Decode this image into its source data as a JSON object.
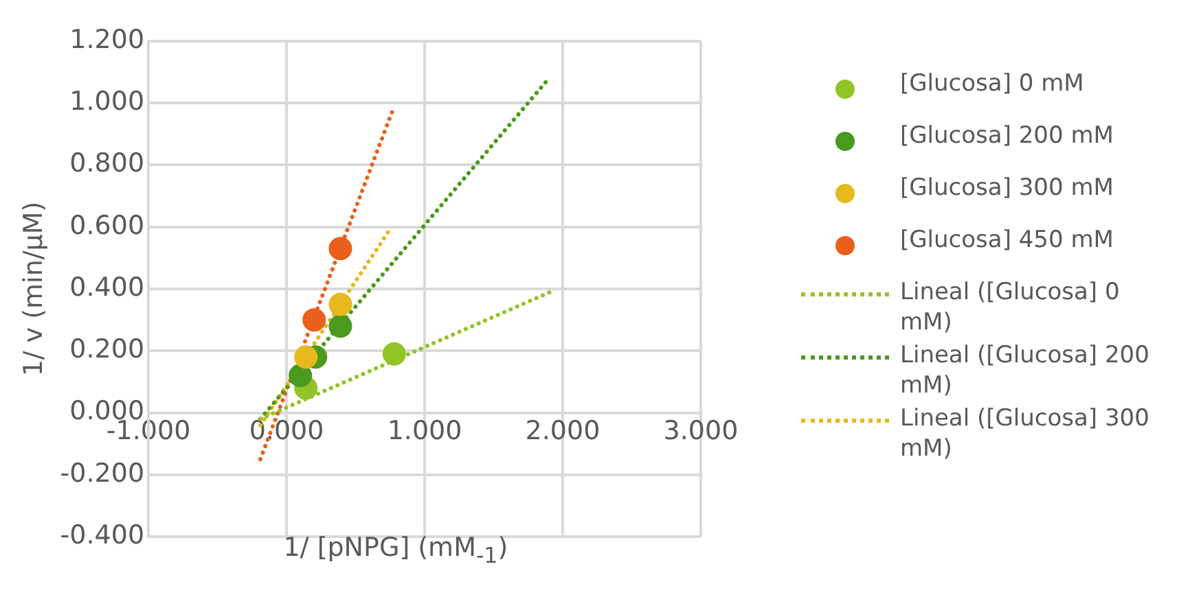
{
  "chart_data": {
    "type": "scatter",
    "xlabel": "1/ [pNPG] (mM$_{-1}$)",
    "ylabel": "1/ v (min/µM)",
    "xlim": [
      -1,
      3
    ],
    "xticks": [
      {
        "value": -1,
        "label": "-1.000"
      },
      {
        "value": 0,
        "label": "0.000"
      },
      {
        "value": 1,
        "label": "1.000"
      },
      {
        "value": 2,
        "label": "2.000"
      },
      {
        "value": 3,
        "label": "3.000"
      }
    ],
    "ylim": [
      -0.4,
      1.2
    ],
    "yticks": [
      {
        "value": -0.4,
        "label": "-0.400"
      },
      {
        "value": -0.2,
        "label": "-0.200"
      },
      {
        "value": 0,
        "label": "0.000"
      },
      {
        "value": 0.2,
        "label": "0.200"
      },
      {
        "value": 0.4,
        "label": "0.400"
      },
      {
        "value": 0.6,
        "label": "0.600"
      },
      {
        "value": 0.8,
        "label": "0.800"
      },
      {
        "value": 1,
        "label": "1.000"
      },
      {
        "value": 1.2,
        "label": "1.200"
      }
    ],
    "grid": true,
    "legend": "right",
    "marker": "circle",
    "series": [
      {
        "name": "[Glucosa] 0 mM",
        "color": "#92c428",
        "x": [
          0.14,
          0.78
        ],
        "values": [
          0.08,
          0.19
        ]
      },
      {
        "name": "[Glucosa] 200 mM",
        "color": "#4a9a1e",
        "x": [
          0.1,
          0.21,
          0.39
        ],
        "values": [
          0.12,
          0.18,
          0.28
        ]
      },
      {
        "name": "[Glucosa] 300 mM",
        "color": "#e6b91e",
        "x": [
          0.14,
          0.39
        ],
        "values": [
          0.18,
          0.35
        ]
      },
      {
        "name": "[Glucosa] 450 mM",
        "color": "#e8601c",
        "x": [
          0.2,
          0.39
        ],
        "values": [
          0.3,
          0.53
        ]
      },
      {
        "name": "Lineal ([Glucosa] 0 mM)",
        "type": "line",
        "marker": "none",
        "line_style": "dotted",
        "color": "#92c428",
        "x": [
          -0.19,
          1.91
        ],
        "values": [
          -0.02,
          0.39
        ]
      },
      {
        "name": "Lineal ([Glucosa] 200 mM)",
        "type": "line",
        "marker": "none",
        "line_style": "dotted",
        "color": "#4a9a1e",
        "x": [
          -0.19,
          1.9
        ],
        "values": [
          -0.02,
          1.08
        ]
      },
      {
        "name": "Lineal ([Glucosa] 300 mM)",
        "type": "line",
        "marker": "none",
        "line_style": "dotted",
        "color": "#e6b91e",
        "x": [
          -0.19,
          0.76
        ],
        "values": [
          -0.04,
          0.6
        ]
      },
      {
        "type": "line",
        "marker": "none",
        "line_style": "dotted",
        "color": "#e8601c",
        "x": [
          -0.19,
          0.78
        ],
        "values": [
          -0.15,
          0.99
        ]
      }
    ]
  }
}
